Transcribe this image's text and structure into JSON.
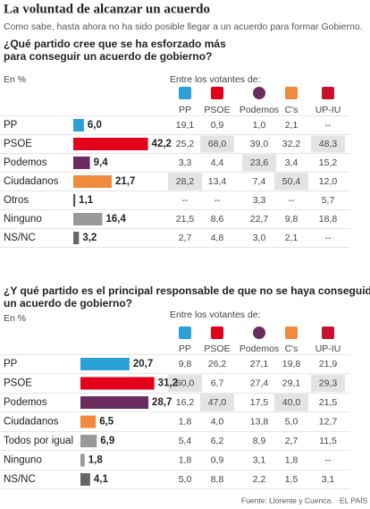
{
  "title": "La voluntad de alcanzar un acuerdo",
  "subtitle": "Como sabe, hasta ahora no ha sido posible llegar a un acuerdo para formar Gobierno.",
  "source": "Fuente: Llorente y Cuenca.",
  "brand": "EL PAÍS",
  "sections": [
    {
      "question": [
        "¿Qué partido cree que se ha esforzado más",
        "para conseguir un acuerdo de gobierno?"
      ],
      "unit": "En %",
      "table_header": "Entre los votantes de:",
      "parties": [
        {
          "name": "PP",
          "color": "#2a9fd8"
        },
        {
          "name": "PSOE",
          "color": "#e2001a"
        },
        {
          "name": "Podemos",
          "color": "#6a2c5e"
        },
        {
          "name": "C's",
          "color": "#f08a3c"
        },
        {
          "name": "UP-IU",
          "color": "#c8102e"
        }
      ],
      "rows": [
        {
          "label": "PP",
          "value": 6.0,
          "value_label": "6,0",
          "color": "#2a9fd8",
          "cells": [
            "19,1",
            "0,9",
            "1,0",
            "2,1",
            "--"
          ],
          "shaded": []
        },
        {
          "label": "PSOE",
          "value": 42.2,
          "value_label": "42,2",
          "color": "#e2001a",
          "cells": [
            "25,2",
            "68,0",
            "39,0",
            "32,2",
            "48,3"
          ],
          "shaded": [
            1,
            4
          ]
        },
        {
          "label": "Podemos",
          "value": 9.4,
          "value_label": "9,4",
          "color": "#6a2c5e",
          "cells": [
            "3,3",
            "4,4",
            "23,6",
            "3,4",
            "15,2"
          ],
          "shaded": [
            2
          ]
        },
        {
          "label": "Ciudadanos",
          "value": 21.7,
          "value_label": "21,7",
          "color": "#f08a3c",
          "cells": [
            "28,2",
            "13,4",
            "7,4",
            "50,4",
            "12,0"
          ],
          "shaded": [
            0,
            3
          ]
        },
        {
          "label": "Otros",
          "value": 1.1,
          "value_label": "1,1",
          "color": "#555555",
          "cells": [
            "--",
            "--",
            "3,3",
            "--",
            "5,7"
          ],
          "shaded": []
        },
        {
          "label": "Ninguno",
          "value": 16.4,
          "value_label": "16,4",
          "color": "#999999",
          "cells": [
            "21,5",
            "8,6",
            "22,7",
            "9,8",
            "18,8"
          ],
          "shaded": []
        },
        {
          "label": "NS/NC",
          "value": 3.2,
          "value_label": "3,2",
          "color": "#666666",
          "cells": [
            "2,7",
            "4,8",
            "3,0",
            "2,1",
            "--"
          ],
          "shaded": []
        }
      ]
    },
    {
      "question": [
        "¿Y qué partido es el principal responsable de que no se haya conseguido",
        "un acuerdo de gobierno?"
      ],
      "unit": "En %",
      "table_header": "Entre los votantes de:",
      "parties": [
        {
          "name": "PP",
          "color": "#2a9fd8"
        },
        {
          "name": "PSOE",
          "color": "#e2001a"
        },
        {
          "name": "Podemos",
          "color": "#6a2c5e"
        },
        {
          "name": "C's",
          "color": "#f08a3c"
        },
        {
          "name": "UP-IU",
          "color": "#c8102e"
        }
      ],
      "rows": [
        {
          "label": "PP",
          "value": 20.7,
          "value_label": "20,7",
          "color": "#2a9fd8",
          "cells": [
            "9,8",
            "26,2",
            "27,1",
            "19,8",
            "21,9"
          ],
          "shaded": []
        },
        {
          "label": "PSOE",
          "value": 31.2,
          "value_label": "31,2",
          "color": "#e2001a",
          "cells": [
            "60,0",
            "6,7",
            "27,4",
            "29,1",
            "29,3"
          ],
          "shaded": [
            0,
            4
          ]
        },
        {
          "label": "Podemos",
          "value": 28.7,
          "value_label": "28,7",
          "color": "#6a2c5e",
          "cells": [
            "16,2",
            "47,0",
            "17,5",
            "40,0",
            "21,5"
          ],
          "shaded": [
            1,
            3
          ]
        },
        {
          "label": "Ciudadanos",
          "value": 6.5,
          "value_label": "6,5",
          "color": "#f08a3c",
          "cells": [
            "1,8",
            "4,0",
            "13,8",
            "5,0",
            "12,7"
          ],
          "shaded": []
        },
        {
          "label": "Todos por igual",
          "value": 6.9,
          "value_label": "6,9",
          "color": "#999999",
          "cells": [
            "5,4",
            "6,2",
            "8,9",
            "2,7",
            "11,5"
          ],
          "shaded": []
        },
        {
          "label": "Ninguno",
          "value": 1.8,
          "value_label": "1,8",
          "color": "#999999",
          "cells": [
            "1,8",
            "0,9",
            "3,1",
            "1,8",
            "--"
          ],
          "shaded": []
        },
        {
          "label": "NS/NC",
          "value": 4.1,
          "value_label": "4,1",
          "color": "#666666",
          "cells": [
            "5,0",
            "8,8",
            "2,2",
            "1,5",
            "3,1"
          ],
          "shaded": []
        }
      ]
    }
  ]
}
